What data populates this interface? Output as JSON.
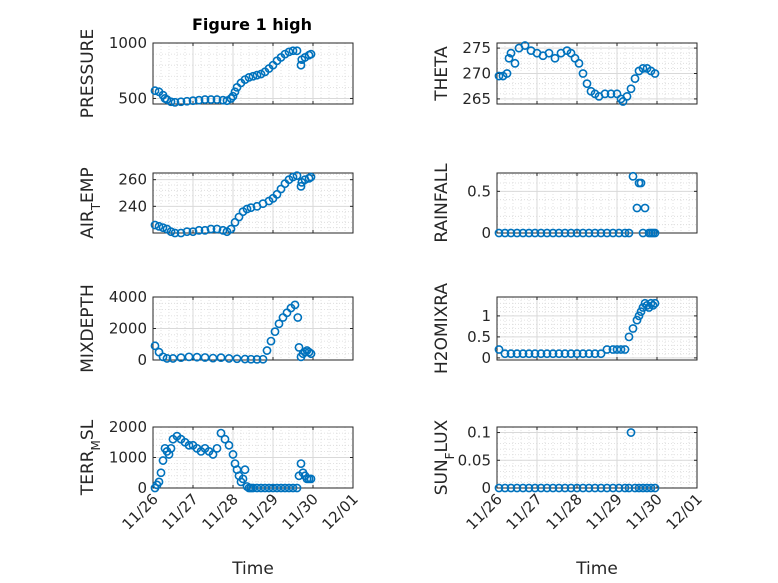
{
  "figure": {
    "title": "Figure 1 high",
    "marker_color": "#0072BD",
    "axis_color": "#262626",
    "grid_color": "#d9d9d9",
    "x_tick_labels": [
      "11/26",
      "11/27",
      "11/28",
      "11/29",
      "11/30",
      "12/01"
    ],
    "x_label": "Time"
  },
  "chart_data": [
    {
      "type": "scatter",
      "ylabel": "PRESSURE",
      "xlim": [
        0,
        5
      ],
      "ylim": [
        450,
        1000
      ],
      "yticks": [
        500,
        1000
      ],
      "ytick_labels": [
        "500",
        "1000"
      ],
      "x": [
        0.05,
        0.15,
        0.25,
        0.3,
        0.35,
        0.45,
        0.55,
        0.7,
        0.85,
        1.0,
        1.15,
        1.3,
        1.45,
        1.6,
        1.75,
        1.85,
        1.95,
        2.0,
        2.05,
        2.1,
        2.2,
        2.3,
        2.4,
        2.5,
        2.6,
        2.7,
        2.8,
        2.9,
        3.0,
        3.1,
        3.2,
        3.3,
        3.4,
        3.5,
        3.6,
        3.7,
        3.72,
        3.8,
        3.9,
        3.95
      ],
      "y": [
        570,
        560,
        530,
        500,
        490,
        470,
        465,
        470,
        475,
        480,
        485,
        490,
        490,
        490,
        485,
        480,
        500,
        520,
        560,
        600,
        640,
        670,
        690,
        700,
        710,
        720,
        740,
        770,
        800,
        840,
        870,
        900,
        920,
        930,
        930,
        800,
        850,
        870,
        890,
        900
      ]
    },
    {
      "type": "scatter",
      "ylabel": "THETA",
      "xlim": [
        0,
        5
      ],
      "ylim": [
        264,
        276
      ],
      "yticks": [
        265,
        270,
        275
      ],
      "ytick_labels": [
        "265",
        "270",
        "275"
      ],
      "x": [
        0.05,
        0.15,
        0.25,
        0.3,
        0.35,
        0.45,
        0.55,
        0.7,
        0.85,
        1.0,
        1.15,
        1.3,
        1.45,
        1.6,
        1.75,
        1.85,
        1.95,
        2.05,
        2.15,
        2.25,
        2.35,
        2.45,
        2.55,
        2.7,
        2.85,
        3.0,
        3.1,
        3.15,
        3.25,
        3.35,
        3.45,
        3.55,
        3.65,
        3.75,
        3.85,
        3.95
      ],
      "y": [
        269.5,
        269.5,
        270,
        273,
        274,
        272,
        275,
        275.5,
        274.5,
        274,
        273.5,
        274,
        273,
        274,
        274.5,
        274,
        273,
        272,
        270,
        268,
        266.5,
        266,
        265.5,
        266,
        266,
        266,
        265,
        264.5,
        265.5,
        267,
        269,
        270.5,
        271,
        271,
        270.5,
        270
      ]
    },
    {
      "type": "scatter",
      "ylabel": "AIR_TEMP",
      "xlim": [
        0,
        5
      ],
      "ylim": [
        220,
        265
      ],
      "yticks": [
        240,
        260
      ],
      "ytick_labels": [
        "240",
        "260"
      ],
      "x": [
        0.05,
        0.15,
        0.25,
        0.35,
        0.45,
        0.55,
        0.7,
        0.85,
        1.0,
        1.15,
        1.3,
        1.45,
        1.6,
        1.75,
        1.85,
        1.95,
        2.05,
        2.15,
        2.25,
        2.35,
        2.45,
        2.6,
        2.75,
        2.9,
        3.0,
        3.1,
        3.2,
        3.3,
        3.4,
        3.5,
        3.6,
        3.7,
        3.72,
        3.8,
        3.9,
        3.95
      ],
      "y": [
        226,
        225,
        224,
        223,
        221,
        220,
        220,
        221,
        221,
        222,
        222,
        223,
        223,
        222,
        221,
        223,
        228,
        232,
        236,
        238,
        239,
        240,
        242,
        244,
        246,
        249,
        253,
        257,
        260,
        262,
        263,
        255,
        258,
        260,
        261,
        262
      ]
    },
    {
      "type": "scatter",
      "ylabel": "RAINFALL",
      "xlim": [
        0,
        5
      ],
      "ylim": [
        0,
        0.72
      ],
      "yticks": [
        0,
        0.5
      ],
      "ytick_labels": [
        "0",
        "0.5"
      ],
      "x": [
        0.05,
        0.2,
        0.35,
        0.5,
        0.65,
        0.8,
        0.95,
        1.1,
        1.25,
        1.4,
        1.55,
        1.7,
        1.85,
        2.0,
        2.15,
        2.3,
        2.45,
        2.6,
        2.75,
        2.9,
        3.05,
        3.2,
        3.3,
        3.4,
        3.5,
        3.55,
        3.6,
        3.65,
        3.7,
        3.8,
        3.85,
        3.9,
        3.95
      ],
      "y": [
        0,
        0,
        0,
        0,
        0,
        0,
        0,
        0,
        0,
        0,
        0,
        0,
        0,
        0,
        0,
        0,
        0,
        0,
        0,
        0,
        0,
        0,
        0,
        0.68,
        0.3,
        0.6,
        0.6,
        0,
        0.3,
        0,
        0,
        0,
        0
      ]
    },
    {
      "type": "scatter",
      "ylabel": "MIXDEPTH",
      "xlim": [
        0,
        5
      ],
      "ylim": [
        0,
        4000
      ],
      "yticks": [
        0,
        2000,
        4000
      ],
      "ytick_labels": [
        "0",
        "2000",
        "4000"
      ],
      "x": [
        0.05,
        0.15,
        0.25,
        0.35,
        0.5,
        0.7,
        0.9,
        1.1,
        1.3,
        1.5,
        1.7,
        1.9,
        2.1,
        2.3,
        2.45,
        2.6,
        2.75,
        2.85,
        2.95,
        3.05,
        3.15,
        3.25,
        3.35,
        3.45,
        3.55,
        3.62,
        3.65,
        3.7,
        3.75,
        3.8,
        3.85,
        3.9,
        3.95
      ],
      "y": [
        900,
        500,
        200,
        100,
        100,
        150,
        200,
        180,
        160,
        120,
        150,
        100,
        80,
        60,
        50,
        40,
        50,
        600,
        1200,
        1800,
        2300,
        2700,
        3000,
        3300,
        3500,
        2700,
        800,
        200,
        400,
        500,
        600,
        500,
        400
      ]
    },
    {
      "type": "scatter",
      "ylabel": "H2OMIXRA",
      "xlim": [
        0,
        5
      ],
      "ylim": [
        -0.05,
        1.45
      ],
      "yticks": [
        0,
        0.5,
        1
      ],
      "ytick_labels": [
        "0",
        "0.5",
        "1"
      ],
      "x": [
        0.05,
        0.2,
        0.35,
        0.5,
        0.65,
        0.8,
        0.95,
        1.1,
        1.25,
        1.4,
        1.55,
        1.7,
        1.85,
        2.0,
        2.15,
        2.3,
        2.45,
        2.6,
        2.75,
        2.9,
        3.0,
        3.1,
        3.2,
        3.3,
        3.4,
        3.5,
        3.55,
        3.6,
        3.65,
        3.7,
        3.75,
        3.8,
        3.85,
        3.9,
        3.95
      ],
      "y": [
        0.2,
        0.1,
        0.1,
        0.1,
        0.1,
        0.1,
        0.1,
        0.1,
        0.1,
        0.1,
        0.1,
        0.1,
        0.1,
        0.1,
        0.1,
        0.1,
        0.1,
        0.1,
        0.2,
        0.2,
        0.2,
        0.2,
        0.2,
        0.5,
        0.7,
        0.9,
        1.0,
        1.1,
        1.2,
        1.3,
        1.25,
        1.2,
        1.3,
        1.25,
        1.3
      ]
    },
    {
      "type": "scatter",
      "ylabel": "TERR_MSL",
      "xlim": [
        0,
        5
      ],
      "ylim": [
        0,
        2000
      ],
      "yticks": [
        0,
        1000,
        2000
      ],
      "ytick_labels": [
        "0",
        "1000",
        "2000"
      ],
      "x": [
        0.05,
        0.1,
        0.15,
        0.2,
        0.25,
        0.3,
        0.35,
        0.4,
        0.45,
        0.5,
        0.6,
        0.7,
        0.8,
        0.9,
        1.0,
        1.1,
        1.2,
        1.3,
        1.4,
        1.5,
        1.6,
        1.7,
        1.8,
        1.9,
        2.0,
        2.05,
        2.1,
        2.15,
        2.2,
        2.25,
        2.3,
        2.35,
        2.4,
        2.45,
        2.5,
        2.6,
        2.7,
        2.8,
        2.9,
        3.0,
        3.1,
        3.2,
        3.3,
        3.4,
        3.5,
        3.6,
        3.65,
        3.7,
        3.75,
        3.8,
        3.85,
        3.9,
        3.95
      ],
      "y": [
        0,
        100,
        200,
        500,
        900,
        1300,
        1200,
        1100,
        1300,
        1600,
        1700,
        1600,
        1500,
        1400,
        1400,
        1300,
        1200,
        1300,
        1200,
        1100,
        1300,
        1800,
        1600,
        1400,
        1100,
        800,
        600,
        400,
        200,
        300,
        600,
        50,
        0,
        0,
        0,
        0,
        0,
        0,
        0,
        0,
        0,
        0,
        0,
        0,
        0,
        0,
        400,
        800,
        500,
        400,
        300,
        300,
        300
      ]
    },
    {
      "type": "scatter",
      "ylabel": "SUN_FLUX",
      "xlim": [
        0,
        5
      ],
      "ylim": [
        0,
        0.11
      ],
      "yticks": [
        0,
        0.05,
        0.1
      ],
      "ytick_labels": [
        "0",
        "0.05",
        "0.1"
      ],
      "x": [
        0.05,
        0.2,
        0.35,
        0.5,
        0.65,
        0.8,
        0.95,
        1.1,
        1.25,
        1.4,
        1.55,
        1.7,
        1.85,
        2.0,
        2.15,
        2.3,
        2.45,
        2.6,
        2.75,
        2.9,
        3.05,
        3.2,
        3.3,
        3.35,
        3.45,
        3.55,
        3.65,
        3.75,
        3.85,
        3.95
      ],
      "y": [
        0,
        0,
        0,
        0,
        0,
        0,
        0,
        0,
        0,
        0,
        0,
        0,
        0,
        0,
        0,
        0,
        0,
        0,
        0,
        0,
        0,
        0,
        0,
        0.1,
        0,
        0,
        0,
        0,
        0,
        0
      ]
    }
  ]
}
